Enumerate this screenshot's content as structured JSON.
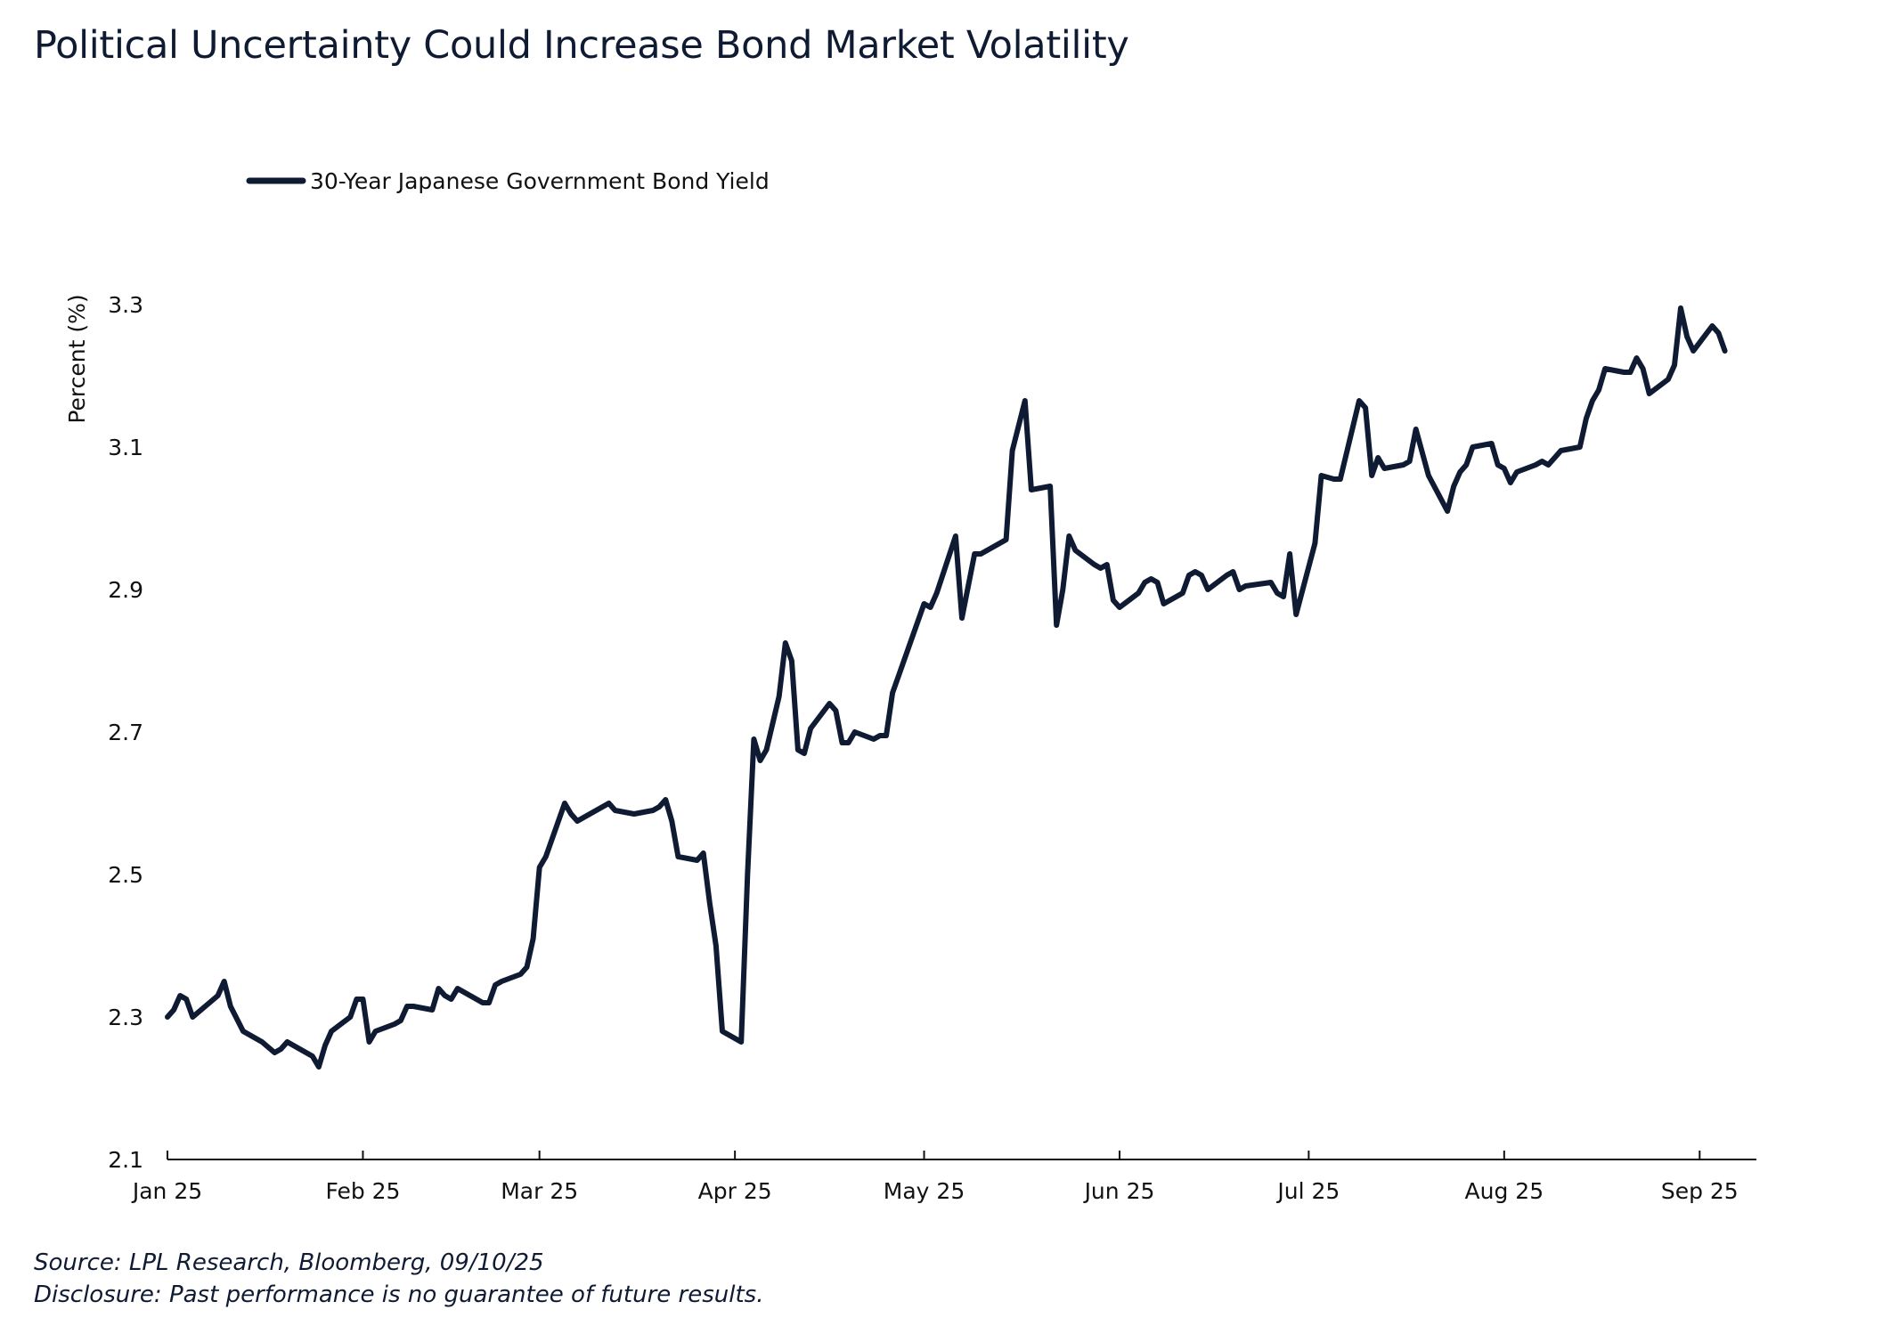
{
  "chart_data": {
    "type": "line",
    "title": "Political Uncertainty Could Increase Bond Market Volatility",
    "ylabel": "Percent (%)",
    "xlabel": "",
    "ylim": [
      2.1,
      3.3
    ],
    "y_ticks": [
      "2.1",
      "2.3",
      "2.5",
      "2.7",
      "2.9",
      "3.1",
      "3.3"
    ],
    "x_ticks": [
      "Jan 25",
      "Feb 25",
      "Mar 25",
      "Apr 25",
      "May 25",
      "Jun 25",
      "Jul 25",
      "Aug 25",
      "Sep 25"
    ],
    "x_tick_dates": [
      "2025-01-01",
      "2025-02-01",
      "2025-03-01",
      "2025-04-01",
      "2025-05-01",
      "2025-06-01",
      "2025-07-01",
      "2025-08-01",
      "2025-09-01"
    ],
    "x_range": [
      "2025-01-01",
      "2025-09-10"
    ],
    "grid": false,
    "legend": "top-left",
    "series": [
      {
        "name": "30-Year Japanese Government Bond Yield",
        "color": "#0f1a33",
        "points": [
          [
            "2025-01-01",
            2.3
          ],
          [
            "2025-01-02",
            2.31
          ],
          [
            "2025-01-03",
            2.33
          ],
          [
            "2025-01-04",
            2.325
          ],
          [
            "2025-01-05",
            2.3
          ],
          [
            "2025-01-09",
            2.33
          ],
          [
            "2025-01-10",
            2.35
          ],
          [
            "2025-01-11",
            2.315
          ],
          [
            "2025-01-13",
            2.28
          ],
          [
            "2025-01-16",
            2.265
          ],
          [
            "2025-01-18",
            2.25
          ],
          [
            "2025-01-19",
            2.255
          ],
          [
            "2025-01-20",
            2.265
          ],
          [
            "2025-01-23",
            2.25
          ],
          [
            "2025-01-24",
            2.245
          ],
          [
            "2025-01-25",
            2.23
          ],
          [
            "2025-01-26",
            2.26
          ],
          [
            "2025-01-27",
            2.28
          ],
          [
            "2025-01-30",
            2.3
          ],
          [
            "2025-01-31",
            2.325
          ],
          [
            "2025-02-01",
            2.325
          ],
          [
            "2025-02-02",
            2.265
          ],
          [
            "2025-02-03",
            2.28
          ],
          [
            "2025-02-06",
            2.29
          ],
          [
            "2025-02-07",
            2.295
          ],
          [
            "2025-02-08",
            2.315
          ],
          [
            "2025-02-09",
            2.315
          ],
          [
            "2025-02-12",
            2.31
          ],
          [
            "2025-02-13",
            2.34
          ],
          [
            "2025-02-14",
            2.33
          ],
          [
            "2025-02-15",
            2.325
          ],
          [
            "2025-02-16",
            2.34
          ],
          [
            "2025-02-20",
            2.32
          ],
          [
            "2025-02-21",
            2.32
          ],
          [
            "2025-02-22",
            2.345
          ],
          [
            "2025-02-23",
            2.35
          ],
          [
            "2025-02-26",
            2.36
          ],
          [
            "2025-02-27",
            2.37
          ],
          [
            "2025-02-28",
            2.41
          ],
          [
            "2025-03-01",
            2.51
          ],
          [
            "2025-03-02",
            2.525
          ],
          [
            "2025-03-05",
            2.6
          ],
          [
            "2025-03-06",
            2.585
          ],
          [
            "2025-03-07",
            2.575
          ],
          [
            "2025-03-08",
            2.58
          ],
          [
            "2025-03-12",
            2.6
          ],
          [
            "2025-03-13",
            2.59
          ],
          [
            "2025-03-16",
            2.585
          ],
          [
            "2025-03-19",
            2.59
          ],
          [
            "2025-03-20",
            2.595
          ],
          [
            "2025-03-21",
            2.605
          ],
          [
            "2025-03-22",
            2.575
          ],
          [
            "2025-03-23",
            2.525
          ],
          [
            "2025-03-26",
            2.52
          ],
          [
            "2025-03-27",
            2.53
          ],
          [
            "2025-03-28",
            2.46
          ],
          [
            "2025-03-29",
            2.4
          ],
          [
            "2025-03-30",
            2.28
          ],
          [
            "2025-04-02",
            2.265
          ],
          [
            "2025-04-03",
            2.5
          ],
          [
            "2025-04-04",
            2.69
          ],
          [
            "2025-04-05",
            2.66
          ],
          [
            "2025-04-06",
            2.675
          ],
          [
            "2025-04-08",
            2.75
          ],
          [
            "2025-04-09",
            2.825
          ],
          [
            "2025-04-10",
            2.8
          ],
          [
            "2025-04-11",
            2.675
          ],
          [
            "2025-04-12",
            2.67
          ],
          [
            "2025-04-13",
            2.705
          ],
          [
            "2025-04-16",
            2.74
          ],
          [
            "2025-04-17",
            2.73
          ],
          [
            "2025-04-18",
            2.685
          ],
          [
            "2025-04-19",
            2.685
          ],
          [
            "2025-04-20",
            2.7
          ],
          [
            "2025-04-23",
            2.69
          ],
          [
            "2025-04-24",
            2.695
          ],
          [
            "2025-04-25",
            2.695
          ],
          [
            "2025-04-26",
            2.755
          ],
          [
            "2025-04-27",
            2.78
          ],
          [
            "2025-05-01",
            2.88
          ],
          [
            "2025-05-02",
            2.875
          ],
          [
            "2025-05-03",
            2.895
          ],
          [
            "2025-05-06",
            2.975
          ],
          [
            "2025-05-07",
            2.86
          ],
          [
            "2025-05-08",
            2.905
          ],
          [
            "2025-05-09",
            2.95
          ],
          [
            "2025-05-10",
            2.95
          ],
          [
            "2025-05-14",
            2.97
          ],
          [
            "2025-05-15",
            3.095
          ],
          [
            "2025-05-17",
            3.165
          ],
          [
            "2025-05-18",
            3.04
          ],
          [
            "2025-05-21",
            3.045
          ],
          [
            "2025-05-22",
            2.85
          ],
          [
            "2025-05-23",
            2.9
          ],
          [
            "2025-05-24",
            2.975
          ],
          [
            "2025-05-25",
            2.955
          ],
          [
            "2025-05-28",
            2.935
          ],
          [
            "2025-05-29",
            2.93
          ],
          [
            "2025-05-30",
            2.935
          ],
          [
            "2025-05-31",
            2.885
          ],
          [
            "2025-06-01",
            2.875
          ],
          [
            "2025-06-04",
            2.895
          ],
          [
            "2025-06-05",
            2.91
          ],
          [
            "2025-06-06",
            2.915
          ],
          [
            "2025-06-07",
            2.91
          ],
          [
            "2025-06-08",
            2.88
          ],
          [
            "2025-06-11",
            2.895
          ],
          [
            "2025-06-12",
            2.92
          ],
          [
            "2025-06-13",
            2.925
          ],
          [
            "2025-06-14",
            2.92
          ],
          [
            "2025-06-15",
            2.9
          ],
          [
            "2025-06-18",
            2.92
          ],
          [
            "2025-06-19",
            2.925
          ],
          [
            "2025-06-20",
            2.9
          ],
          [
            "2025-06-21",
            2.905
          ],
          [
            "2025-06-25",
            2.91
          ],
          [
            "2025-06-26",
            2.895
          ],
          [
            "2025-06-27",
            2.89
          ],
          [
            "2025-06-28",
            2.95
          ],
          [
            "2025-06-29",
            2.865
          ],
          [
            "2025-07-02",
            2.965
          ],
          [
            "2025-07-03",
            3.06
          ],
          [
            "2025-07-05",
            3.055
          ],
          [
            "2025-07-06",
            3.055
          ],
          [
            "2025-07-09",
            3.165
          ],
          [
            "2025-07-10",
            3.155
          ],
          [
            "2025-07-11",
            3.06
          ],
          [
            "2025-07-12",
            3.085
          ],
          [
            "2025-07-13",
            3.07
          ],
          [
            "2025-07-16",
            3.075
          ],
          [
            "2025-07-17",
            3.08
          ],
          [
            "2025-07-18",
            3.125
          ],
          [
            "2025-07-20",
            3.06
          ],
          [
            "2025-07-23",
            3.01
          ],
          [
            "2025-07-24",
            3.045
          ],
          [
            "2025-07-25",
            3.065
          ],
          [
            "2025-07-26",
            3.075
          ],
          [
            "2025-07-27",
            3.1
          ],
          [
            "2025-07-30",
            3.105
          ],
          [
            "2025-07-31",
            3.075
          ],
          [
            "2025-08-01",
            3.07
          ],
          [
            "2025-08-02",
            3.05
          ],
          [
            "2025-08-03",
            3.065
          ],
          [
            "2025-08-06",
            3.075
          ],
          [
            "2025-08-07",
            3.08
          ],
          [
            "2025-08-08",
            3.075
          ],
          [
            "2025-08-09",
            3.085
          ],
          [
            "2025-08-10",
            3.095
          ],
          [
            "2025-08-13",
            3.1
          ],
          [
            "2025-08-14",
            3.14
          ],
          [
            "2025-08-15",
            3.165
          ],
          [
            "2025-08-16",
            3.18
          ],
          [
            "2025-08-17",
            3.21
          ],
          [
            "2025-08-20",
            3.205
          ],
          [
            "2025-08-21",
            3.205
          ],
          [
            "2025-08-22",
            3.225
          ],
          [
            "2025-08-23",
            3.21
          ],
          [
            "2025-08-24",
            3.175
          ],
          [
            "2025-08-27",
            3.195
          ],
          [
            "2025-08-28",
            3.215
          ],
          [
            "2025-08-29",
            3.295
          ],
          [
            "2025-08-30",
            3.255
          ],
          [
            "2025-08-31",
            3.235
          ],
          [
            "2025-09-03",
            3.27
          ],
          [
            "2025-09-04",
            3.26
          ],
          [
            "2025-09-05",
            3.235
          ]
        ]
      }
    ]
  },
  "footer": {
    "source": "Source: LPL Research, Bloomberg, 09/10/25",
    "disclosure": "Disclosure: Past performance is no guarantee of future results."
  }
}
